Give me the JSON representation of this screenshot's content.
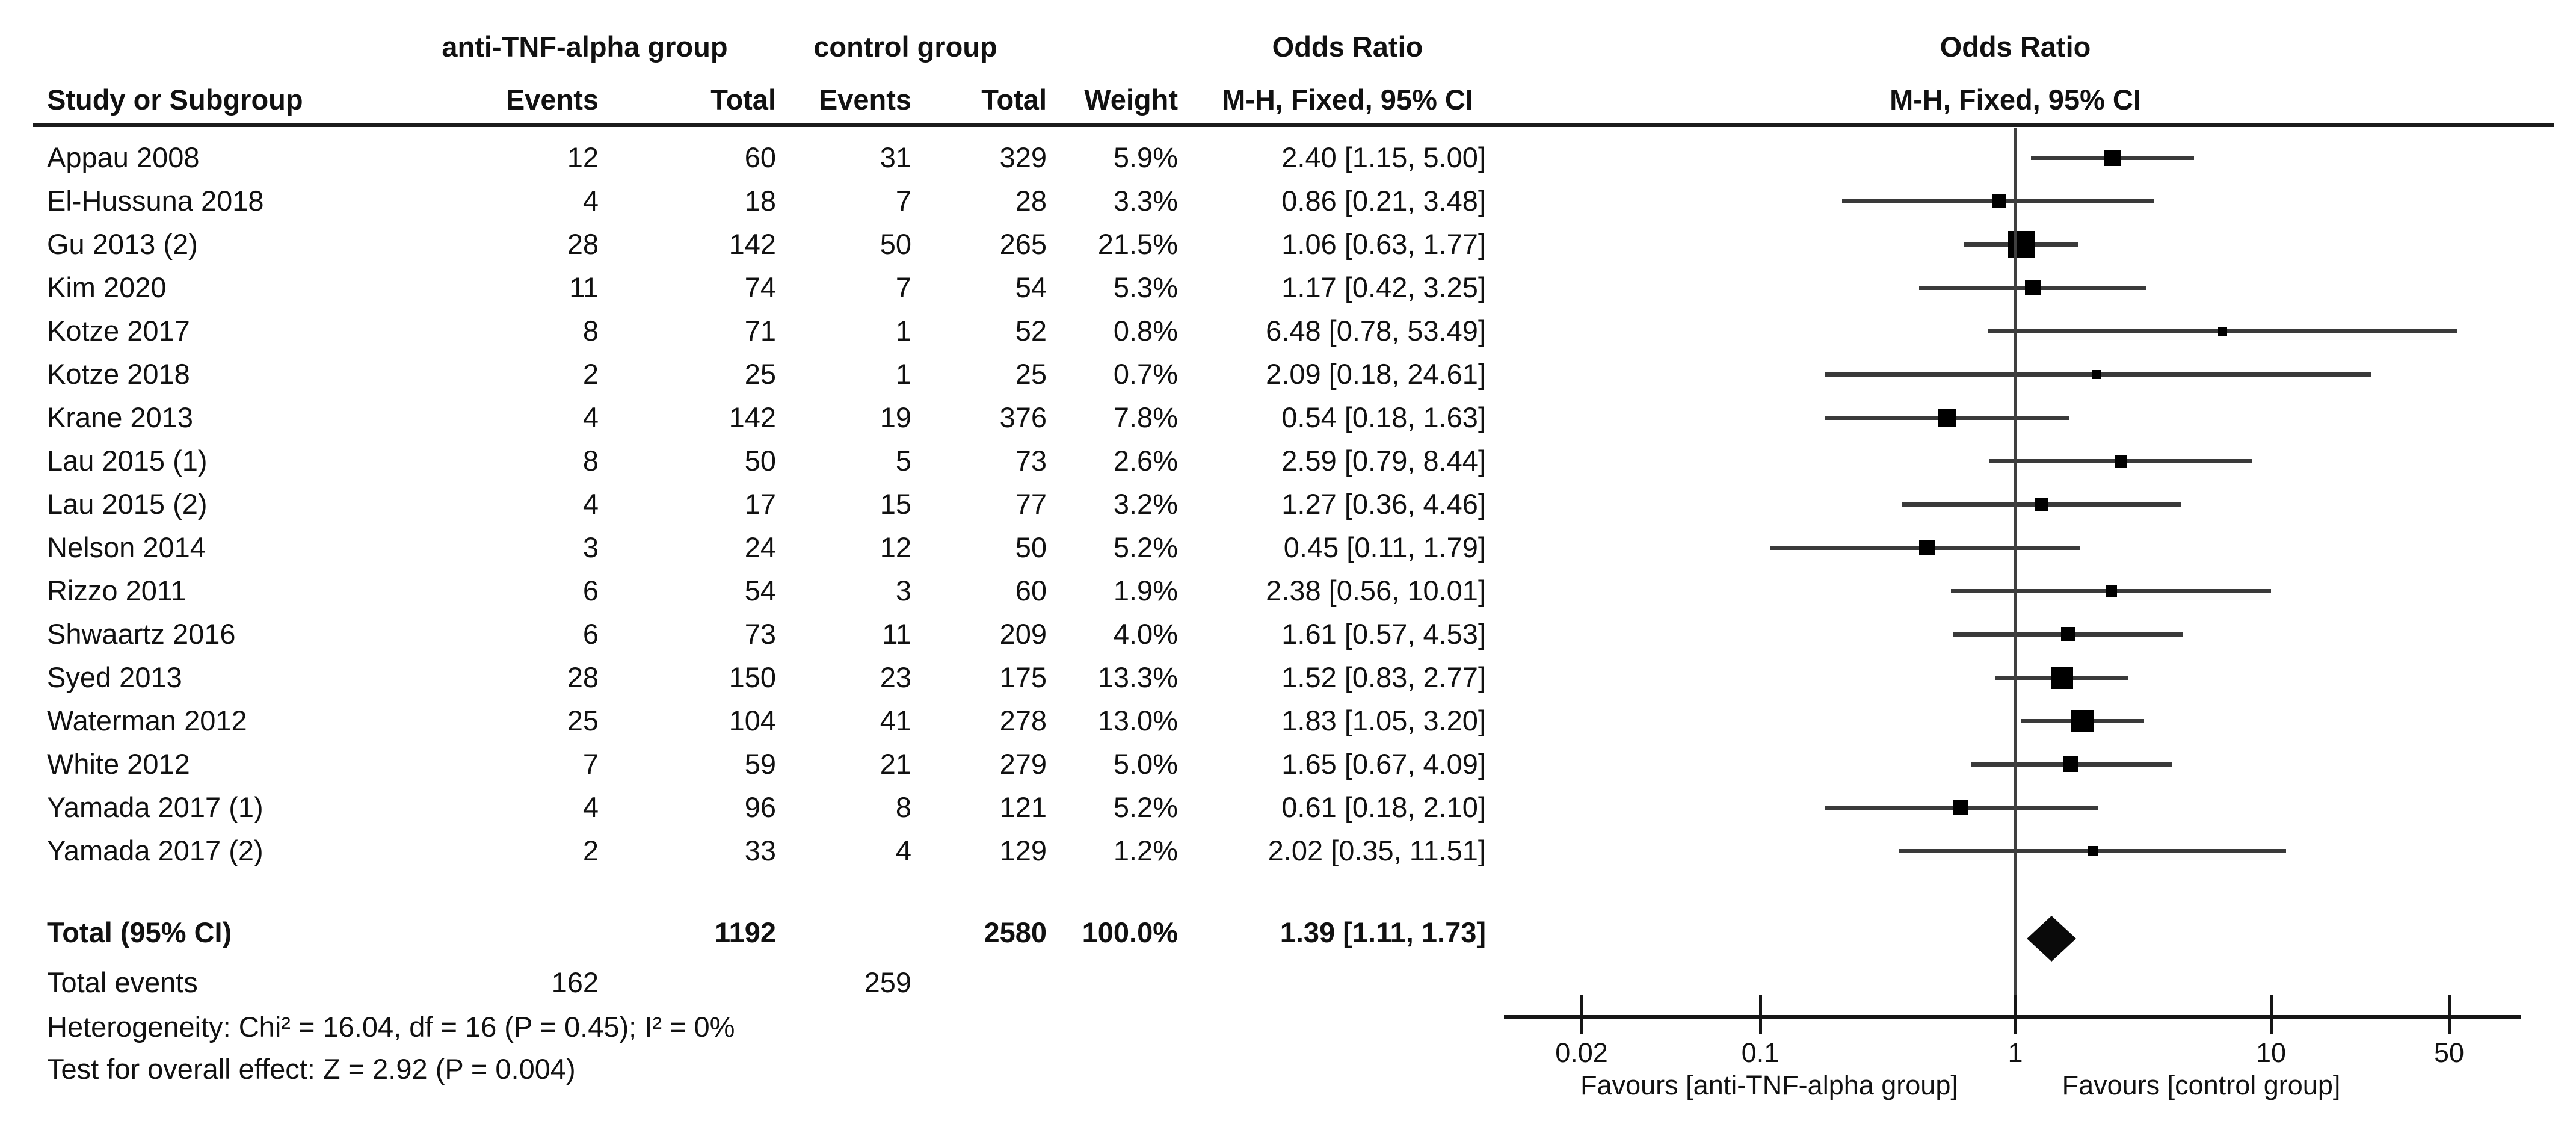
{
  "header": {
    "group_anti": "anti-TNF-alpha group",
    "group_control": "control group",
    "or_title": "Odds Ratio",
    "col_study": "Study or Subgroup",
    "col_events": "Events",
    "col_total": "Total",
    "col_weight": "Weight",
    "col_mh": "M-H, Fixed, 95% CI"
  },
  "footer": {
    "total_label": "Total (95% CI)",
    "total_events_label": "Total events",
    "heterogeneity": "Heterogeneity: Chi² = 16.04, df = 16 (P = 0.45); I² = 0%",
    "overall_effect": "Test for overall effect: Z = 2.92 (P = 0.004)"
  },
  "chart_data": {
    "type": "forest",
    "effect_measure": "Odds Ratio",
    "method": "M-H, Fixed, 95% CI",
    "axis": {
      "scale": "log",
      "ticks": [
        0.02,
        0.1,
        1,
        10,
        50
      ],
      "tick_labels": [
        "0.02",
        "0.1",
        "1",
        "10",
        "50"
      ],
      "xlim": [
        0.01,
        70
      ]
    },
    "favours_left": "Favours [anti-TNF-alpha group]",
    "favours_right": "Favours [control group]",
    "studies": [
      {
        "name": "Appau 2008",
        "events_treat": "12",
        "total_treat": "60",
        "events_ctrl": "31",
        "total_ctrl": "329",
        "weight": "5.9%",
        "weight_pct": 5.9,
        "or": 2.4,
        "ci_low": 1.15,
        "ci_high": 5.0,
        "label": "2.40 [1.15, 5.00]"
      },
      {
        "name": "El-Hussuna 2018",
        "events_treat": "4",
        "total_treat": "18",
        "events_ctrl": "7",
        "total_ctrl": "28",
        "weight": "3.3%",
        "weight_pct": 3.3,
        "or": 0.86,
        "ci_low": 0.21,
        "ci_high": 3.48,
        "label": "0.86 [0.21, 3.48]"
      },
      {
        "name": "Gu 2013 (2)",
        "events_treat": "28",
        "total_treat": "142",
        "events_ctrl": "50",
        "total_ctrl": "265",
        "weight": "21.5%",
        "weight_pct": 21.5,
        "or": 1.06,
        "ci_low": 0.63,
        "ci_high": 1.77,
        "label": "1.06 [0.63, 1.77]"
      },
      {
        "name": "Kim 2020",
        "events_treat": "11",
        "total_treat": "74",
        "events_ctrl": "7",
        "total_ctrl": "54",
        "weight": "5.3%",
        "weight_pct": 5.3,
        "or": 1.17,
        "ci_low": 0.42,
        "ci_high": 3.25,
        "label": "1.17 [0.42, 3.25]"
      },
      {
        "name": "Kotze 2017",
        "events_treat": "8",
        "total_treat": "71",
        "events_ctrl": "1",
        "total_ctrl": "52",
        "weight": "0.8%",
        "weight_pct": 0.8,
        "or": 6.48,
        "ci_low": 0.78,
        "ci_high": 53.49,
        "label": "6.48 [0.78, 53.49]"
      },
      {
        "name": "Kotze 2018",
        "events_treat": "2",
        "total_treat": "25",
        "events_ctrl": "1",
        "total_ctrl": "25",
        "weight": "0.7%",
        "weight_pct": 0.7,
        "or": 2.09,
        "ci_low": 0.18,
        "ci_high": 24.61,
        "label": "2.09 [0.18, 24.61]"
      },
      {
        "name": "Krane 2013",
        "events_treat": "4",
        "total_treat": "142",
        "events_ctrl": "19",
        "total_ctrl": "376",
        "weight": "7.8%",
        "weight_pct": 7.8,
        "or": 0.54,
        "ci_low": 0.18,
        "ci_high": 1.63,
        "label": "0.54 [0.18, 1.63]"
      },
      {
        "name": "Lau 2015 (1)",
        "events_treat": "8",
        "total_treat": "50",
        "events_ctrl": "5",
        "total_ctrl": "73",
        "weight": "2.6%",
        "weight_pct": 2.6,
        "or": 2.59,
        "ci_low": 0.79,
        "ci_high": 8.44,
        "label": "2.59 [0.79, 8.44]"
      },
      {
        "name": "Lau 2015 (2)",
        "events_treat": "4",
        "total_treat": "17",
        "events_ctrl": "15",
        "total_ctrl": "77",
        "weight": "3.2%",
        "weight_pct": 3.2,
        "or": 1.27,
        "ci_low": 0.36,
        "ci_high": 4.46,
        "label": "1.27 [0.36, 4.46]"
      },
      {
        "name": "Nelson 2014",
        "events_treat": "3",
        "total_treat": "24",
        "events_ctrl": "12",
        "total_ctrl": "50",
        "weight": "5.2%",
        "weight_pct": 5.2,
        "or": 0.45,
        "ci_low": 0.11,
        "ci_high": 1.79,
        "label": "0.45 [0.11, 1.79]"
      },
      {
        "name": "Rizzo 2011",
        "events_treat": "6",
        "total_treat": "54",
        "events_ctrl": "3",
        "total_ctrl": "60",
        "weight": "1.9%",
        "weight_pct": 1.9,
        "or": 2.38,
        "ci_low": 0.56,
        "ci_high": 10.01,
        "label": "2.38 [0.56, 10.01]"
      },
      {
        "name": "Shwaartz 2016",
        "events_treat": "6",
        "total_treat": "73",
        "events_ctrl": "11",
        "total_ctrl": "209",
        "weight": "4.0%",
        "weight_pct": 4.0,
        "or": 1.61,
        "ci_low": 0.57,
        "ci_high": 4.53,
        "label": "1.61 [0.57, 4.53]"
      },
      {
        "name": "Syed 2013",
        "events_treat": "28",
        "total_treat": "150",
        "events_ctrl": "23",
        "total_ctrl": "175",
        "weight": "13.3%",
        "weight_pct": 13.3,
        "or": 1.52,
        "ci_low": 0.83,
        "ci_high": 2.77,
        "label": "1.52 [0.83, 2.77]"
      },
      {
        "name": "Waterman 2012",
        "events_treat": "25",
        "total_treat": "104",
        "events_ctrl": "41",
        "total_ctrl": "278",
        "weight": "13.0%",
        "weight_pct": 13.0,
        "or": 1.83,
        "ci_low": 1.05,
        "ci_high": 3.2,
        "label": "1.83 [1.05, 3.20]"
      },
      {
        "name": "White 2012",
        "events_treat": "7",
        "total_treat": "59",
        "events_ctrl": "21",
        "total_ctrl": "279",
        "weight": "5.0%",
        "weight_pct": 5.0,
        "or": 1.65,
        "ci_low": 0.67,
        "ci_high": 4.09,
        "label": "1.65 [0.67, 4.09]"
      },
      {
        "name": "Yamada 2017 (1)",
        "events_treat": "4",
        "total_treat": "96",
        "events_ctrl": "8",
        "total_ctrl": "121",
        "weight": "5.2%",
        "weight_pct": 5.2,
        "or": 0.61,
        "ci_low": 0.18,
        "ci_high": 2.1,
        "label": "0.61 [0.18, 2.10]"
      },
      {
        "name": "Yamada 2017 (2)",
        "events_treat": "2",
        "total_treat": "33",
        "events_ctrl": "4",
        "total_ctrl": "129",
        "weight": "1.2%",
        "weight_pct": 1.2,
        "or": 2.02,
        "ci_low": 0.35,
        "ci_high": 11.51,
        "label": "2.02 [0.35, 11.51]"
      }
    ],
    "total": {
      "total_treat": "1192",
      "total_ctrl": "2580",
      "weight": "100.0%",
      "or": 1.39,
      "ci_low": 1.11,
      "ci_high": 1.73,
      "label": "1.39 [1.11, 1.73]",
      "events_treat": "162",
      "events_ctrl": "259"
    }
  }
}
